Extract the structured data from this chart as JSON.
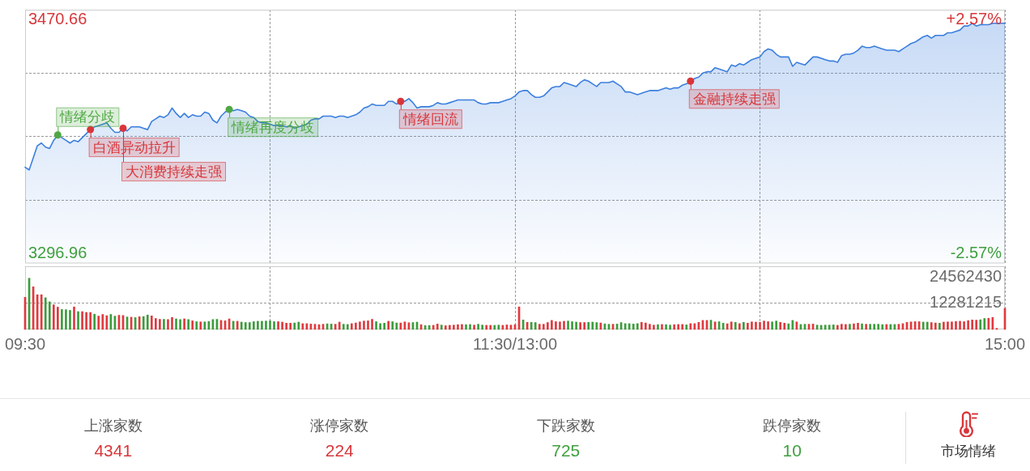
{
  "chart_data": [
    {
      "type": "area",
      "categories": [
        null,
        null,
        null,
        null,
        null,
        null,
        null,
        null,
        null,
        null,
        null,
        null,
        null,
        null,
        null,
        null,
        null,
        null,
        null,
        null,
        null,
        null,
        null,
        null,
        null,
        null,
        null,
        null,
        null,
        null,
        null,
        null,
        null,
        null,
        null,
        null,
        null,
        null,
        null,
        null,
        null,
        null,
        null,
        null,
        null,
        null,
        null,
        null,
        null,
        null,
        null,
        null,
        null,
        null,
        null,
        null,
        null,
        null,
        null,
        null,
        null,
        null,
        null,
        null,
        null,
        null,
        null,
        null,
        null,
        null,
        null,
        null,
        null,
        null,
        null,
        null,
        null,
        null,
        null,
        null,
        null,
        null,
        null,
        null,
        null,
        null,
        null,
        null,
        null,
        null,
        null,
        null,
        null,
        null,
        null,
        null,
        null,
        null,
        null,
        null,
        null,
        null,
        null,
        null,
        null,
        null,
        null,
        null,
        null,
        null,
        null,
        null,
        null,
        null,
        null,
        null,
        null,
        null,
        null,
        null,
        null,
        null,
        null,
        null,
        null,
        null,
        null,
        null,
        null,
        null,
        null,
        null,
        null,
        null,
        null,
        null,
        null,
        null,
        null,
        null,
        null,
        null,
        null,
        null,
        null,
        null,
        null,
        null,
        null,
        null,
        null,
        null,
        null,
        null,
        null,
        null,
        null,
        null,
        null,
        null,
        null,
        null,
        null,
        null,
        null,
        null,
        null,
        null,
        null,
        null,
        null,
        null,
        null,
        null,
        null,
        null,
        null,
        null,
        null,
        null,
        null,
        null,
        null,
        null,
        null,
        null,
        null,
        null,
        null,
        null,
        null,
        null,
        null,
        null,
        null,
        null,
        null,
        null,
        null,
        null,
        null,
        null,
        null,
        null,
        null,
        null,
        null,
        null,
        null,
        null,
        null,
        null,
        null,
        null,
        null,
        null,
        null,
        null,
        null,
        null,
        null,
        null,
        null,
        null,
        null,
        null,
        null,
        null,
        null,
        null,
        null,
        null,
        null,
        null,
        null,
        null,
        null,
        null,
        null,
        null,
        null
      ],
      "series": [
        {
          "color": "#3b7fde",
          "values": [
            3361,
            3359,
            3368,
            3377,
            3379,
            3376,
            3375,
            3381,
            3385,
            3383,
            3381,
            3379,
            3381,
            3380,
            3383,
            3386,
            3389,
            3391,
            3392,
            3393,
            3394,
            3390,
            3387,
            3387,
            3390,
            3388,
            3391,
            3391,
            3391,
            3390,
            3389,
            3395,
            3397,
            3399,
            3398,
            3400,
            3405,
            3401,
            3398,
            3401,
            3398,
            3400,
            3399,
            3399,
            3402,
            3401,
            3396,
            3394,
            3399,
            3402,
            3404,
            3403,
            3404,
            3403,
            3402,
            3399,
            3398,
            3395,
            3394,
            3394,
            3393,
            3392,
            3392,
            3392,
            3391,
            3392,
            3390,
            3391,
            3392,
            3393,
            3396,
            3397,
            3397,
            3399,
            3399,
            3399,
            3398,
            3399,
            3399,
            3398,
            3399,
            3400,
            3402,
            3405,
            3406,
            3408,
            3407,
            3407,
            3407,
            3410,
            3410,
            3408,
            3410,
            3410,
            3412,
            3409,
            3405,
            3406,
            3406,
            3406,
            3407,
            3409,
            3408,
            3408,
            3409,
            3410,
            3411,
            3411,
            3411,
            3411,
            3411,
            3409,
            3408,
            3408,
            3409,
            3409,
            3409,
            3410,
            3411,
            3412,
            3414,
            3417,
            3418,
            3418,
            3415,
            3413,
            3413,
            3414,
            3417,
            3420,
            3421,
            3421,
            3424,
            3423,
            3422,
            3421,
            3424,
            3426,
            3425,
            3423,
            3421,
            3424,
            3424,
            3424,
            3425,
            3423,
            3421,
            3417,
            3417,
            3416,
            3415,
            3416,
            3417,
            3418,
            3418,
            3418,
            3419,
            3420,
            3419,
            3420,
            3420,
            3422,
            3423,
            3425,
            3427,
            3428,
            3431,
            3432,
            3432,
            3435,
            3434,
            3433,
            3432,
            3437,
            3436,
            3438,
            3437,
            3439,
            3441,
            3442,
            3443,
            3447,
            3449,
            3448,
            3445,
            3443,
            3443,
            3443,
            3436,
            3439,
            3438,
            3437,
            3440,
            3443,
            3443,
            3442,
            3441,
            3440,
            3440,
            3439,
            3444,
            3445,
            3445,
            3446,
            3448,
            3451,
            3450,
            3450,
            3451,
            3450,
            3449,
            3448,
            3448,
            3448,
            3447,
            3449,
            3451,
            3453,
            3454,
            3456,
            3458,
            3459,
            3457,
            3459,
            3459,
            3459,
            3461,
            3461,
            3462,
            3463,
            3466,
            3466,
            3468,
            3466,
            3467,
            3467,
            3467,
            3468,
            3468,
            3468,
            3468
          ]
        },
        {
          "type": "scatter",
          "marker": "circle",
          "color": "#4fa844",
          "values": [
            null,
            null,
            null,
            null,
            null,
            null,
            null,
            null,
            3385,
            null,
            null,
            null,
            null,
            null,
            null,
            null,
            null,
            null,
            null,
            null,
            null,
            null,
            null,
            null,
            null,
            null,
            null,
            null,
            null,
            null,
            null,
            null,
            null,
            null,
            null,
            null,
            null,
            null,
            null,
            null,
            null,
            null,
            null,
            null,
            null,
            null,
            null,
            null,
            null,
            null,
            3404,
            null,
            null,
            null,
            null,
            null,
            null,
            null,
            null,
            null,
            null,
            null,
            null,
            null,
            null,
            null,
            null,
            null,
            null,
            null,
            null,
            null,
            null,
            null,
            null,
            null,
            null,
            null,
            null,
            null,
            null,
            null,
            null,
            null,
            null,
            null,
            null,
            null,
            null,
            null,
            null,
            null,
            null,
            null,
            null,
            null,
            null,
            null,
            null,
            null,
            null,
            null,
            null,
            null,
            null,
            null,
            null,
            null,
            null,
            null,
            null,
            null,
            null,
            null,
            null,
            null,
            null,
            null,
            null,
            null,
            null,
            null,
            null,
            null,
            null,
            null,
            null,
            null,
            null,
            null,
            null,
            null,
            null,
            null,
            null,
            null,
            null,
            null,
            null,
            null,
            null,
            null,
            null,
            null,
            null,
            null,
            null,
            null,
            null,
            null,
            null,
            null,
            null,
            null,
            null,
            null,
            null,
            null,
            null,
            null,
            null,
            null,
            null,
            null,
            null,
            null,
            null,
            null,
            null,
            null,
            null,
            null,
            null,
            null,
            null,
            null,
            null,
            null,
            null,
            null,
            null,
            null,
            null,
            null,
            null,
            null,
            null,
            null,
            null,
            null,
            null,
            null,
            null,
            null,
            null,
            null,
            null,
            null,
            null,
            null,
            null,
            null,
            null,
            null,
            null,
            null,
            null,
            null,
            null,
            null,
            null,
            null,
            null,
            null,
            null,
            null,
            null,
            null,
            null,
            null,
            null,
            null,
            null,
            null,
            null,
            null,
            null,
            null,
            null,
            null,
            null,
            null,
            null,
            null,
            null,
            null,
            null,
            null,
            null,
            null,
            null
          ]
        },
        {
          "type": "scatter",
          "marker": "circle",
          "color": "#d8363a",
          "values": [
            null,
            null,
            null,
            null,
            null,
            null,
            null,
            null,
            null,
            null,
            null,
            null,
            null,
            null,
            null,
            null,
            3389,
            null,
            null,
            null,
            null,
            null,
            null,
            null,
            3390,
            null,
            null,
            null,
            null,
            null,
            null,
            null,
            null,
            null,
            null,
            null,
            null,
            null,
            null,
            null,
            null,
            null,
            null,
            null,
            null,
            null,
            null,
            null,
            null,
            null,
            null,
            null,
            null,
            null,
            null,
            null,
            null,
            null,
            null,
            null,
            null,
            null,
            null,
            null,
            null,
            null,
            null,
            null,
            null,
            null,
            null,
            null,
            null,
            null,
            null,
            null,
            null,
            null,
            null,
            null,
            null,
            null,
            null,
            null,
            null,
            null,
            null,
            null,
            null,
            null,
            null,
            null,
            3410,
            null,
            null,
            null,
            null,
            null,
            null,
            null,
            null,
            null,
            null,
            null,
            null,
            null,
            null,
            null,
            null,
            null,
            null,
            null,
            null,
            null,
            null,
            null,
            null,
            null,
            null,
            null,
            null,
            null,
            null,
            null,
            null,
            null,
            null,
            null,
            null,
            null,
            null,
            null,
            null,
            null,
            null,
            null,
            null,
            null,
            null,
            null,
            null,
            null,
            null,
            null,
            null,
            null,
            null,
            null,
            null,
            null,
            null,
            null,
            null,
            null,
            null,
            null,
            null,
            null,
            null,
            null,
            null,
            null,
            null,
            3425,
            null,
            null,
            null,
            null,
            null,
            null,
            null,
            null,
            null,
            null,
            null,
            null,
            null,
            null,
            null,
            null,
            null,
            null,
            null,
            null,
            null,
            null,
            null,
            null,
            null,
            null,
            null,
            null,
            null,
            null,
            null,
            null,
            null,
            null,
            null,
            null,
            null,
            null,
            null,
            null,
            null,
            null,
            null,
            null,
            null,
            null,
            null,
            null,
            null,
            null,
            null,
            null,
            null,
            null,
            null,
            null,
            null,
            null,
            null,
            null,
            null,
            null,
            null,
            null,
            null,
            null,
            null,
            null,
            null,
            null,
            null,
            null,
            null,
            null,
            null,
            null,
            null
          ]
        }
      ],
      "ylim": [
        3289.5,
        3478.12
      ],
      "yticks": [
        3296.96,
        {
          "value": 3336.7,
          "label": null
        },
        {
          "value": 3383.81,
          "label": null
        },
        {
          "value": 3431,
          "label": null
        },
        3470.66
      ],
      "y2lim": [
        -2.79,
        2.79
      ],
      "y2ticks": [
        {
          "value": -2.57,
          "label": "-2.57%"
        },
        {
          "value": 2.57,
          "label": "+2.57%"
        }
      ],
      "grid": true,
      "annotations": [
        "情绪分歧",
        "白酒异动拉升",
        "大消费持续走强",
        "情绪再度分歧",
        "情绪回流",
        "金融持续走强"
      ]
    },
    {
      "type": "bar",
      "categories": [
        "09:30",
        null,
        null,
        null,
        null,
        null,
        null,
        null,
        null,
        null,
        null,
        null,
        null,
        null,
        null,
        null,
        null,
        null,
        null,
        null,
        null,
        null,
        null,
        null,
        null,
        null,
        null,
        null,
        null,
        null,
        null,
        null,
        null,
        null,
        null,
        null,
        null,
        null,
        null,
        null,
        null,
        null,
        null,
        null,
        null,
        null,
        null,
        null,
        null,
        null,
        null,
        null,
        null,
        null,
        null,
        null,
        null,
        null,
        null,
        null,
        null,
        null,
        null,
        null,
        null,
        null,
        null,
        null,
        null,
        null,
        null,
        null,
        null,
        null,
        null,
        null,
        null,
        null,
        null,
        null,
        null,
        null,
        null,
        null,
        null,
        null,
        null,
        null,
        null,
        null,
        null,
        null,
        null,
        null,
        null,
        null,
        null,
        null,
        null,
        null,
        null,
        null,
        null,
        null,
        null,
        null,
        null,
        null,
        null,
        null,
        null,
        null,
        null,
        null,
        null,
        null,
        null,
        null,
        null,
        null,
        "11:30/13:00",
        null,
        null,
        null,
        null,
        null,
        null,
        null,
        null,
        null,
        null,
        null,
        null,
        null,
        null,
        null,
        null,
        null,
        null,
        null,
        null,
        null,
        null,
        null,
        null,
        null,
        null,
        null,
        null,
        null,
        null,
        null,
        null,
        null,
        null,
        null,
        null,
        null,
        null,
        null,
        null,
        null,
        null,
        null,
        null,
        null,
        null,
        null,
        null,
        null,
        null,
        null,
        null,
        null,
        null,
        null,
        null,
        null,
        null,
        null,
        null,
        null,
        null,
        null,
        null,
        null,
        null,
        null,
        null,
        null,
        null,
        null,
        null,
        null,
        null,
        null,
        null,
        null,
        null,
        null,
        null,
        null,
        null,
        null,
        null,
        null,
        null,
        null,
        null,
        null,
        null,
        null,
        null,
        null,
        null,
        null,
        null,
        null,
        null,
        null,
        null,
        null,
        null,
        null,
        null,
        null,
        null,
        null,
        null,
        null,
        null,
        null,
        null,
        null,
        null,
        null,
        null,
        null,
        null,
        null,
        "15:00"
      ],
      "values": [
        15000000,
        23900000,
        19900000,
        16200000,
        16200000,
        14800000,
        12900000,
        11500000,
        10400000,
        9300000,
        9200000,
        8900000,
        10500000,
        8300000,
        8300000,
        7900000,
        7900000,
        7100000,
        6200000,
        7000000,
        6400000,
        7000000,
        6200000,
        6600000,
        6500000,
        5800000,
        5700000,
        5500000,
        5900000,
        6000000,
        6700000,
        6300000,
        5100000,
        4700000,
        4700000,
        4600000,
        5600000,
        4900000,
        4600000,
        4900000,
        4600000,
        4000000,
        3600000,
        3500000,
        3500000,
        3700000,
        4600000,
        4700000,
        4200000,
        4000000,
        4900000,
        3800000,
        3800000,
        3400000,
        3200000,
        3200000,
        3600000,
        3800000,
        3800000,
        3900000,
        4000000,
        3600000,
        3600000,
        3400000,
        2900000,
        2900000,
        3000000,
        3400000,
        2700000,
        2700000,
        2500000,
        2400000,
        2200000,
        2400000,
        2600000,
        2500000,
        2400000,
        3400000,
        2400000,
        2300000,
        2700000,
        3000000,
        3500000,
        3900000,
        4000000,
        4700000,
        3600000,
        2700000,
        2900000,
        3800000,
        3600000,
        3000000,
        3000000,
        3500000,
        3100000,
        3200000,
        3400000,
        2200000,
        1800000,
        1800000,
        1900000,
        2500000,
        2000000,
        1700000,
        1900000,
        2000000,
        2200000,
        2300000,
        2200000,
        2300000,
        2000000,
        2400000,
        2000000,
        1900000,
        1900000,
        1900000,
        2000000,
        1900000,
        2100000,
        2000000,
        2200000,
        10500000,
        4400000,
        3300000,
        3300000,
        3200000,
        2400000,
        2400000,
        3200000,
        4200000,
        3600000,
        3500000,
        3800000,
        3900000,
        3600000,
        3400000,
        3200000,
        3200000,
        3300000,
        3400000,
        3200000,
        3000000,
        2600000,
        2400000,
        2400000,
        2500000,
        3200000,
        2700000,
        2700000,
        2500000,
        2700000,
        3300000,
        3000000,
        2400000,
        2000000,
        2200000,
        2300000,
        2200000,
        2000000,
        2200000,
        2300000,
        2300000,
        2100000,
        2700000,
        2700000,
        3300000,
        4200000,
        4200000,
        4300000,
        3500000,
        3600000,
        2900000,
        2600000,
        3500000,
        3300000,
        2700000,
        3300000,
        2900000,
        3500000,
        3400000,
        3300000,
        3900000,
        3600000,
        3500000,
        3900000,
        3300000,
        2900000,
        2600000,
        4200000,
        3500000,
        2300000,
        2400000,
        2400000,
        2500000,
        2000000,
        1900000,
        2000000,
        2000000,
        2100000,
        1900000,
        2400000,
        2300000,
        2400000,
        2600000,
        2900000,
        2600000,
        2400000,
        2400000,
        2400000,
        2400000,
        2200000,
        2300000,
        2300000,
        2300000,
        2400000,
        2700000,
        3300000,
        3500000,
        3600000,
        3600000,
        3400000,
        3400000,
        3200000,
        3000000,
        2900000,
        3400000,
        3500000,
        3500000,
        3700000,
        3800000,
        3600000,
        4100000,
        4400000,
        4300000,
        4500000,
        5100000,
        5200000,
        5600000,
        500000,
        null,
        9800000
      ],
      "colors": [
        "#e0393e",
        "#3c9c3c",
        "#e0393e",
        "#e0393e",
        "#e0393e",
        "#3c9c3c",
        "#3c9c3c",
        "#e0393e",
        "#e0393e",
        "#3c9c3c",
        "#3c9c3c",
        "#3c9c3c",
        "#e0393e",
        "#3c9c3c",
        "#e0393e",
        "#e0393e",
        "#e0393e",
        "#3c9c3c",
        "#e0393e",
        "#e0393e",
        "#e0393e",
        "#3c9c3c",
        "#3c9c3c",
        "#e0393e",
        "#e0393e",
        "#3c9c3c",
        "#e0393e",
        "#3c9c3c",
        "#e0393e",
        "#3c9c3c",
        "#3c9c3c",
        "#e0393e",
        "#e0393e",
        "#e0393e",
        "#3c9c3c",
        "#e0393e",
        "#e0393e",
        "#3c9c3c",
        "#3c9c3c",
        "#e0393e",
        "#3c9c3c",
        "#e0393e",
        "#3c9c3c",
        "#e0393e",
        "#3c9c3c",
        "#3c9c3c",
        "#3c9c3c",
        "#3c9c3c",
        "#e0393e",
        "#e0393e",
        "#e0393e",
        "#3c9c3c",
        "#e0393e",
        "#3c9c3c",
        "#3c9c3c",
        "#3c9c3c",
        "#3c9c3c",
        "#3c9c3c",
        "#3c9c3c",
        "#3c9c3c",
        "#3c9c3c",
        "#3c9c3c",
        "#e0393e",
        "#e0393e",
        "#e0393e",
        "#e0393e",
        "#3c9c3c",
        "#3c9c3c",
        "#e0393e",
        "#e0393e",
        "#e0393e",
        "#e0393e",
        "#e0393e",
        "#e0393e",
        "#3c9c3c",
        "#3c9c3c",
        "#e0393e",
        "#e0393e",
        "#3c9c3c",
        "#3c9c3c",
        "#e0393e",
        "#e0393e",
        "#e0393e",
        "#e0393e",
        "#e0393e",
        "#e0393e",
        "#3c9c3c",
        "#3c9c3c",
        "#3c9c3c",
        "#e0393e",
        "#3c9c3c",
        "#3c9c3c",
        "#e0393e",
        "#e0393e",
        "#e0393e",
        "#3c9c3c",
        "#3c9c3c",
        "#e0393e",
        "#3c9c3c",
        "#3c9c3c",
        "#e0393e",
        "#e0393e",
        "#3c9c3c",
        "#e0393e",
        "#e0393e",
        "#e0393e",
        "#e0393e",
        "#e0393e",
        "#3c9c3c",
        "#3c9c3c",
        "#e0393e",
        "#3c9c3c",
        "#3c9c3c",
        "#e0393e",
        "#e0393e",
        "#3c9c3c",
        "#3c9c3c",
        "#e0393e",
        "#e0393e",
        "#e0393e",
        "#e0393e",
        "#e0393e",
        "#3c9c3c",
        "#e0393e",
        "#3c9c3c",
        "#3c9c3c",
        "#e0393e",
        "#e0393e",
        "#e0393e",
        "#e0393e",
        "#e0393e",
        "#e0393e",
        "#e0393e",
        "#3c9c3c",
        "#3c9c3c",
        "#3c9c3c",
        "#e0393e",
        "#e0393e",
        "#3c9c3c",
        "#3c9c3c",
        "#3c9c3c",
        "#e0393e",
        "#3c9c3c",
        "#3c9c3c",
        "#e0393e",
        "#3c9c3c",
        "#3c9c3c",
        "#3c9c3c",
        "#3c9c3c",
        "#3c9c3c",
        "#3c9c3c",
        "#e0393e",
        "#e0393e",
        "#e0393e",
        "#e0393e",
        "#3c9c3c",
        "#e0393e",
        "#3c9c3c",
        "#3c9c3c",
        "#e0393e",
        "#e0393e",
        "#e0393e",
        "#3c9c3c",
        "#e0393e",
        "#e0393e",
        "#e0393e",
        "#e0393e",
        "#e0393e",
        "#3c9c3c",
        "#e0393e",
        "#3c9c3c",
        "#3c9c3c",
        "#e0393e",
        "#e0393e",
        "#3c9c3c",
        "#e0393e",
        "#3c9c3c",
        "#e0393e",
        "#e0393e",
        "#e0393e",
        "#e0393e",
        "#e0393e",
        "#e0393e",
        "#3c9c3c",
        "#3c9c3c",
        "#e0393e",
        "#e0393e",
        "#3c9c3c",
        "#3c9c3c",
        "#e0393e",
        "#3c9c3c",
        "#3c9c3c",
        "#e0393e",
        "#e0393e",
        "#3c9c3c",
        "#3c9c3c",
        "#3c9c3c",
        "#3c9c3c",
        "#3c9c3c",
        "#e0393e",
        "#e0393e",
        "#e0393e",
        "#3c9c3c",
        "#e0393e",
        "#e0393e",
        "#3c9c3c",
        "#e0393e",
        "#3c9c3c",
        "#3c9c3c",
        "#3c9c3c",
        "#3c9c3c",
        "#e0393e",
        "#3c9c3c",
        "#3c9c3c",
        "#e0393e",
        "#e0393e",
        "#e0393e",
        "#e0393e",
        "#e0393e",
        "#e0393e",
        "#3c9c3c",
        "#3c9c3c",
        "#e0393e",
        "#e0393e",
        "#3c9c3c",
        "#e0393e",
        "#e0393e",
        "#e0393e",
        "#e0393e",
        "#e0393e",
        "#e0393e",
        "#e0393e",
        "#e0393e",
        "#e0393e",
        "#3c9c3c",
        "#3c9c3c",
        "#e0393e",
        "#e0393e",
        "#e0393e",
        "#e0393e",
        "#e0393e"
      ],
      "ylim": [
        0,
        29500000
      ],
      "yticks": [
        12281215,
        24562430
      ],
      "grid": true
    },
    {
      "type": "other",
      "categories": [
        "上涨家数",
        "涨停家数",
        "下跌家数",
        "跌停家数"
      ],
      "values": [
        4341,
        224,
        725,
        10
      ],
      "colors": [
        "#d8363a",
        "#d8363a",
        "#3f9f3f",
        "#3f9f3f"
      ],
      "data_labels": true,
      "annotations": [
        "市场情绪"
      ]
    }
  ]
}
